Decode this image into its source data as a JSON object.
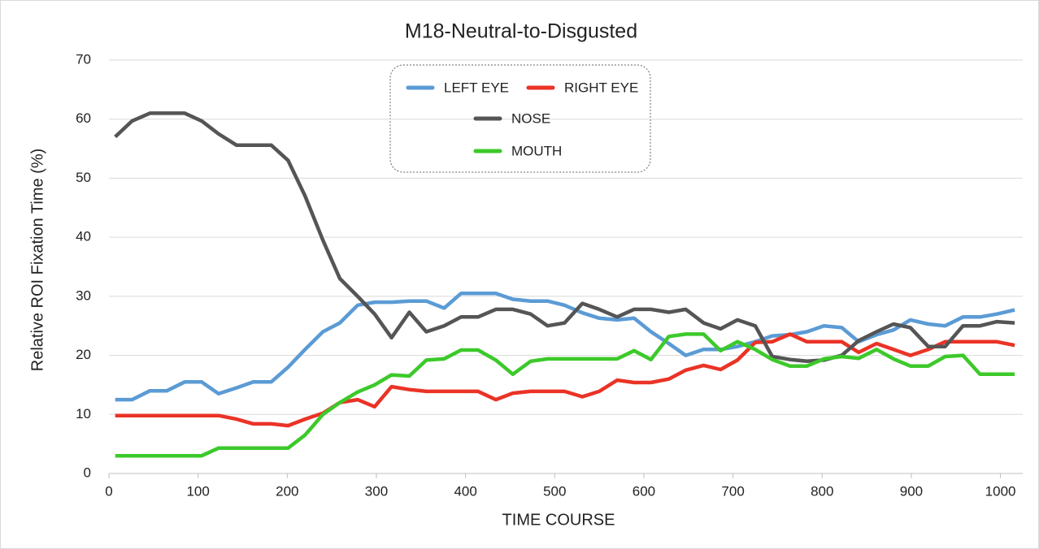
{
  "chart_data": {
    "type": "line",
    "title": "M18-Neutral-to-Disgusted",
    "x_label": "TIME  COURSE",
    "y_label": "Relative  ROI  Fixation  Time  (%)",
    "x": [
      7,
      26,
      46,
      65,
      85,
      104,
      123,
      143,
      162,
      182,
      201,
      220,
      240,
      259,
      279,
      298,
      317,
      337,
      356,
      376,
      395,
      414,
      434,
      453,
      473,
      492,
      511,
      531,
      550,
      570,
      589,
      608,
      628,
      647,
      667,
      686,
      705,
      725,
      744,
      764,
      783,
      802,
      822,
      841,
      861,
      880,
      899,
      919,
      938,
      958,
      977,
      996,
      1016
    ],
    "series": [
      {
        "name": "LEFT EYE",
        "color": "#5b9bd5",
        "values": [
          12.5,
          12.5,
          14,
          14,
          15.5,
          15.5,
          13.5,
          14.5,
          15.5,
          15.5,
          18,
          21,
          24,
          25.5,
          28.5,
          29,
          29,
          29.2,
          29.2,
          28,
          30.5,
          30.5,
          30.5,
          29.5,
          29.2,
          29.2,
          28.5,
          27.2,
          26.3,
          26,
          26.3,
          24,
          22,
          20,
          21,
          21,
          21.5,
          22.3,
          23.3,
          23.5,
          24,
          25,
          24.7,
          22.3,
          23.5,
          24.3,
          26,
          25.3,
          25,
          26.5,
          26.5,
          27,
          27.7
        ]
      },
      {
        "name": "RIGHT EYE",
        "color": "#ea3326",
        "values": [
          9.8,
          9.8,
          9.8,
          9.8,
          9.8,
          9.8,
          9.8,
          9.2,
          8.4,
          8.4,
          8.1,
          9.2,
          10.2,
          12,
          12.5,
          11.3,
          14.7,
          14.2,
          13.9,
          13.9,
          13.9,
          13.9,
          12.5,
          13.6,
          13.9,
          13.9,
          13.9,
          13,
          13.9,
          15.8,
          15.4,
          15.4,
          16,
          17.5,
          18.3,
          17.6,
          19.2,
          22.2,
          22.3,
          23.6,
          22.3,
          22.3,
          22.3,
          20.5,
          22,
          21,
          20,
          21,
          22.3,
          22.3,
          22.3,
          22.3,
          21.7
        ]
      },
      {
        "name": "NOSE",
        "color": "#555555",
        "values": [
          57,
          59.7,
          61,
          61,
          61,
          59.7,
          57.5,
          55.6,
          55.6,
          55.6,
          53,
          47,
          39.5,
          33,
          30,
          27,
          23,
          27.3,
          24,
          25,
          26.5,
          26.5,
          27.8,
          27.8,
          27,
          25,
          25.5,
          28.8,
          27.8,
          26.5,
          27.8,
          27.8,
          27.3,
          27.8,
          25.5,
          24.5,
          26,
          25,
          19.8,
          19.3,
          19,
          19.2,
          20,
          22.5,
          24,
          25.3,
          24.7,
          21.5,
          21.5,
          25,
          25,
          25.7,
          25.5
        ]
      },
      {
        "name": "MOUTH",
        "color": "#3cc92a",
        "values": [
          3,
          3,
          3,
          3,
          3,
          3,
          4.3,
          4.3,
          4.3,
          4.3,
          4.3,
          6.5,
          10,
          12,
          13.8,
          15,
          16.7,
          16.5,
          19.2,
          19.4,
          20.9,
          20.9,
          19.2,
          16.8,
          19,
          19.4,
          19.4,
          19.4,
          19.4,
          19.4,
          20.8,
          19.3,
          23.2,
          23.6,
          23.6,
          20.8,
          22.3,
          21,
          19.3,
          18.2,
          18.2,
          19.4,
          19.8,
          19.5,
          21,
          19.4,
          18.2,
          18.2,
          19.8,
          20,
          16.8,
          16.8,
          16.8
        ]
      }
    ],
    "xlim": [
      0,
      1025
    ],
    "xticks": [
      0,
      100,
      200,
      300,
      400,
      500,
      600,
      700,
      800,
      900,
      1000
    ],
    "ylim": [
      0,
      70
    ],
    "yticks": [
      0,
      10,
      20,
      30,
      40,
      50,
      60,
      70
    ],
    "grid": true
  }
}
